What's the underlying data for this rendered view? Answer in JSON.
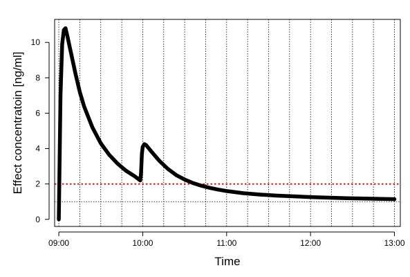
{
  "chart_data": {
    "type": "line",
    "title": "",
    "xlabel": "Time",
    "ylabel": "Effect concentratoin [ng/ml]",
    "x_unit": "hours",
    "xlim": [
      8.95,
      13.07
    ],
    "ylim": [
      -0.4,
      11.3
    ],
    "x_ticks": [
      {
        "value": 9,
        "label": "09:00"
      },
      {
        "value": 10,
        "label": "10:00"
      },
      {
        "value": 11,
        "label": "11:00"
      },
      {
        "value": 12,
        "label": "12:00"
      },
      {
        "value": 13,
        "label": "13:00"
      }
    ],
    "y_ticks": [
      {
        "value": 0,
        "label": "0"
      },
      {
        "value": 2,
        "label": "2"
      },
      {
        "value": 4,
        "label": "4"
      },
      {
        "value": 6,
        "label": "6"
      },
      {
        "value": 8,
        "label": "8"
      },
      {
        "value": 10,
        "label": "10"
      }
    ],
    "vertical_gridlines": [
      9.0,
      9.25,
      9.5,
      9.75,
      10.0,
      10.25,
      10.5,
      10.75,
      11.0,
      11.25,
      11.5,
      11.75,
      12.0,
      12.25,
      12.5,
      12.75,
      13.0
    ],
    "reference_lines": [
      {
        "y": 2,
        "color": "#e00000",
        "style": "dotted"
      },
      {
        "y": 1,
        "color": "#000000",
        "style": "dotted"
      }
    ],
    "series": [
      {
        "color": "#000000",
        "x": [
          9.0,
          9.02,
          9.04,
          9.06,
          9.08,
          9.1,
          9.15,
          9.2,
          9.25,
          9.3,
          9.4,
          9.5,
          9.6,
          9.7,
          9.8,
          9.9,
          9.97,
          9.98,
          9.99,
          10.0,
          10.02,
          10.04,
          10.1,
          10.2,
          10.3,
          10.4,
          10.5,
          10.6,
          10.7,
          10.8,
          10.9,
          11.0,
          11.2,
          11.4,
          11.6,
          11.8,
          12.0,
          12.2,
          12.4,
          12.6,
          12.8,
          13.0
        ],
        "y": [
          0.0,
          7.0,
          9.9,
          10.7,
          10.8,
          10.4,
          9.3,
          8.2,
          7.2,
          6.4,
          5.2,
          4.3,
          3.65,
          3.15,
          2.75,
          2.45,
          2.2,
          2.6,
          3.7,
          4.1,
          4.25,
          4.2,
          3.85,
          3.3,
          2.85,
          2.5,
          2.25,
          2.05,
          1.9,
          1.78,
          1.68,
          1.6,
          1.48,
          1.4,
          1.34,
          1.3,
          1.26,
          1.23,
          1.2,
          1.18,
          1.16,
          1.14
        ]
      }
    ]
  }
}
